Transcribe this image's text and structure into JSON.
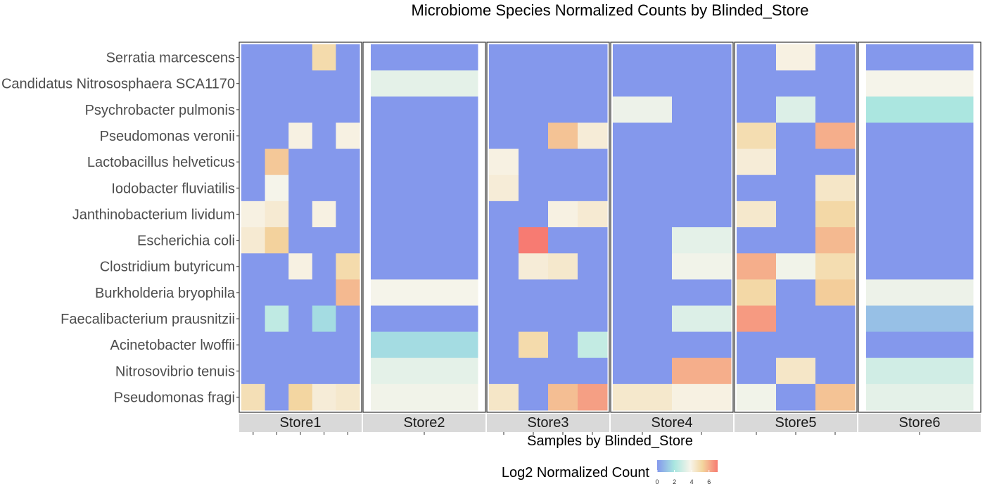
{
  "chart_data": {
    "type": "heatmap",
    "title": "Microbiome Species Normalized Counts by Blinded_Store",
    "xlabel": "Samples by Blinded_Store",
    "ylabel": "",
    "species": [
      "Serratia marcescens",
      "Candidatus Nitrososphaera SCA1170",
      "Psychrobacter pulmonis",
      "Pseudomonas veronii",
      "Lactobacillus helveticus",
      "Iodobacter fluviatilis",
      "Janthinobacterium lividum",
      "Escherichia coli",
      "Clostridium butyricum",
      "Burkholderia bryophila",
      "Faecalibacterium prausnitzii",
      "Acinetobacter lwoffii",
      "Nitrosovibrio tenuis",
      "Pseudomonas fragi"
    ],
    "facets": [
      {
        "name": "Store1",
        "samples": 5,
        "values": [
          [
            0,
            0,
            0,
            5,
            0
          ],
          [
            0,
            0,
            0,
            0,
            0
          ],
          [
            0,
            0,
            0,
            0,
            0
          ],
          [
            0,
            0,
            4,
            0,
            4
          ],
          [
            0,
            5.5,
            0,
            0,
            0
          ],
          [
            0,
            3.8,
            0,
            0,
            0
          ],
          [
            4,
            4.3,
            0,
            4,
            0
          ],
          [
            4.3,
            5.3,
            0,
            0,
            0
          ],
          [
            0,
            0,
            4,
            0,
            5
          ],
          [
            0,
            0,
            0,
            0,
            5.8
          ],
          [
            0,
            2.5,
            0,
            1.7,
            0
          ],
          [
            0,
            0,
            0,
            0,
            0
          ],
          [
            0,
            0,
            0,
            0,
            0
          ],
          [
            4.8,
            0,
            5.2,
            4.2,
            4.4
          ]
        ]
      },
      {
        "name": "Store2",
        "samples": 1,
        "values": [
          [
            0
          ],
          [
            3.4
          ],
          [
            0
          ],
          [
            0
          ],
          [
            0
          ],
          [
            0
          ],
          [
            0
          ],
          [
            0
          ],
          [
            0
          ],
          [
            3.8
          ],
          [
            0
          ],
          [
            1.7
          ],
          [
            3.4
          ],
          [
            3.7
          ]
        ]
      },
      {
        "name": "Store3",
        "samples": 4,
        "values": [
          [
            0,
            0,
            0,
            0
          ],
          [
            0,
            0,
            0,
            0
          ],
          [
            0,
            0,
            0,
            0
          ],
          [
            0,
            0,
            5.6,
            4.2
          ],
          [
            4,
            0,
            0,
            0
          ],
          [
            4.2,
            0,
            0,
            0
          ],
          [
            0,
            0,
            4,
            4.3
          ],
          [
            0,
            7,
            0,
            0
          ],
          [
            0,
            4.2,
            4.4,
            0
          ],
          [
            0,
            0,
            0,
            0
          ],
          [
            0,
            0,
            0,
            0
          ],
          [
            0,
            5,
            0,
            2.6
          ],
          [
            0,
            0,
            0,
            0
          ],
          [
            4.5,
            0,
            5.7,
            6.3
          ]
        ]
      },
      {
        "name": "Store4",
        "samples": 2,
        "values": [
          [
            0,
            0
          ],
          [
            0,
            0
          ],
          [
            3.6,
            0
          ],
          [
            0,
            0
          ],
          [
            0,
            0
          ],
          [
            0,
            0
          ],
          [
            0,
            0
          ],
          [
            0,
            3.4
          ],
          [
            0,
            3.7
          ],
          [
            0,
            0
          ],
          [
            0,
            3.2
          ],
          [
            0,
            0
          ],
          [
            0,
            6
          ],
          [
            4.4,
            4
          ]
        ]
      },
      {
        "name": "Store5",
        "samples": 3,
        "values": [
          [
            0,
            4,
            0
          ],
          [
            0,
            0,
            0
          ],
          [
            0,
            3.2,
            0
          ],
          [
            4.9,
            0,
            6
          ],
          [
            4.2,
            0,
            0
          ],
          [
            0,
            0,
            4.5
          ],
          [
            4.4,
            0,
            5.1
          ],
          [
            0,
            0,
            5.8
          ],
          [
            6,
            3.7,
            4.9
          ],
          [
            5.1,
            0,
            5.4
          ],
          [
            6.4,
            0,
            0
          ],
          [
            0,
            0,
            0
          ],
          [
            0,
            4.5,
            0
          ],
          [
            3.7,
            0,
            5.6
          ]
        ]
      },
      {
        "name": "Store6",
        "samples": 1,
        "values": [
          [
            0
          ],
          [
            3.8
          ],
          [
            2
          ],
          [
            0
          ],
          [
            0
          ],
          [
            0
          ],
          [
            0
          ],
          [
            0
          ],
          [
            0
          ],
          [
            3.6
          ],
          [
            1
          ],
          [
            0
          ],
          [
            2.9
          ],
          [
            3.4
          ]
        ]
      }
    ],
    "legend": {
      "title": "Log2 Normalized Count",
      "ticks": [
        "0",
        "2",
        "4",
        "6"
      ],
      "range": [
        0,
        7
      ],
      "position": "bottom"
    },
    "colors": {
      "low": "#8498ec",
      "mid_low": "#a9e6e0",
      "mid": "#f7f4ea",
      "mid_high": "#f3d59e",
      "high": "#f77b72",
      "panel_border": "#333333",
      "strip_fill": "#d9d9d9"
    },
    "grid": false
  }
}
